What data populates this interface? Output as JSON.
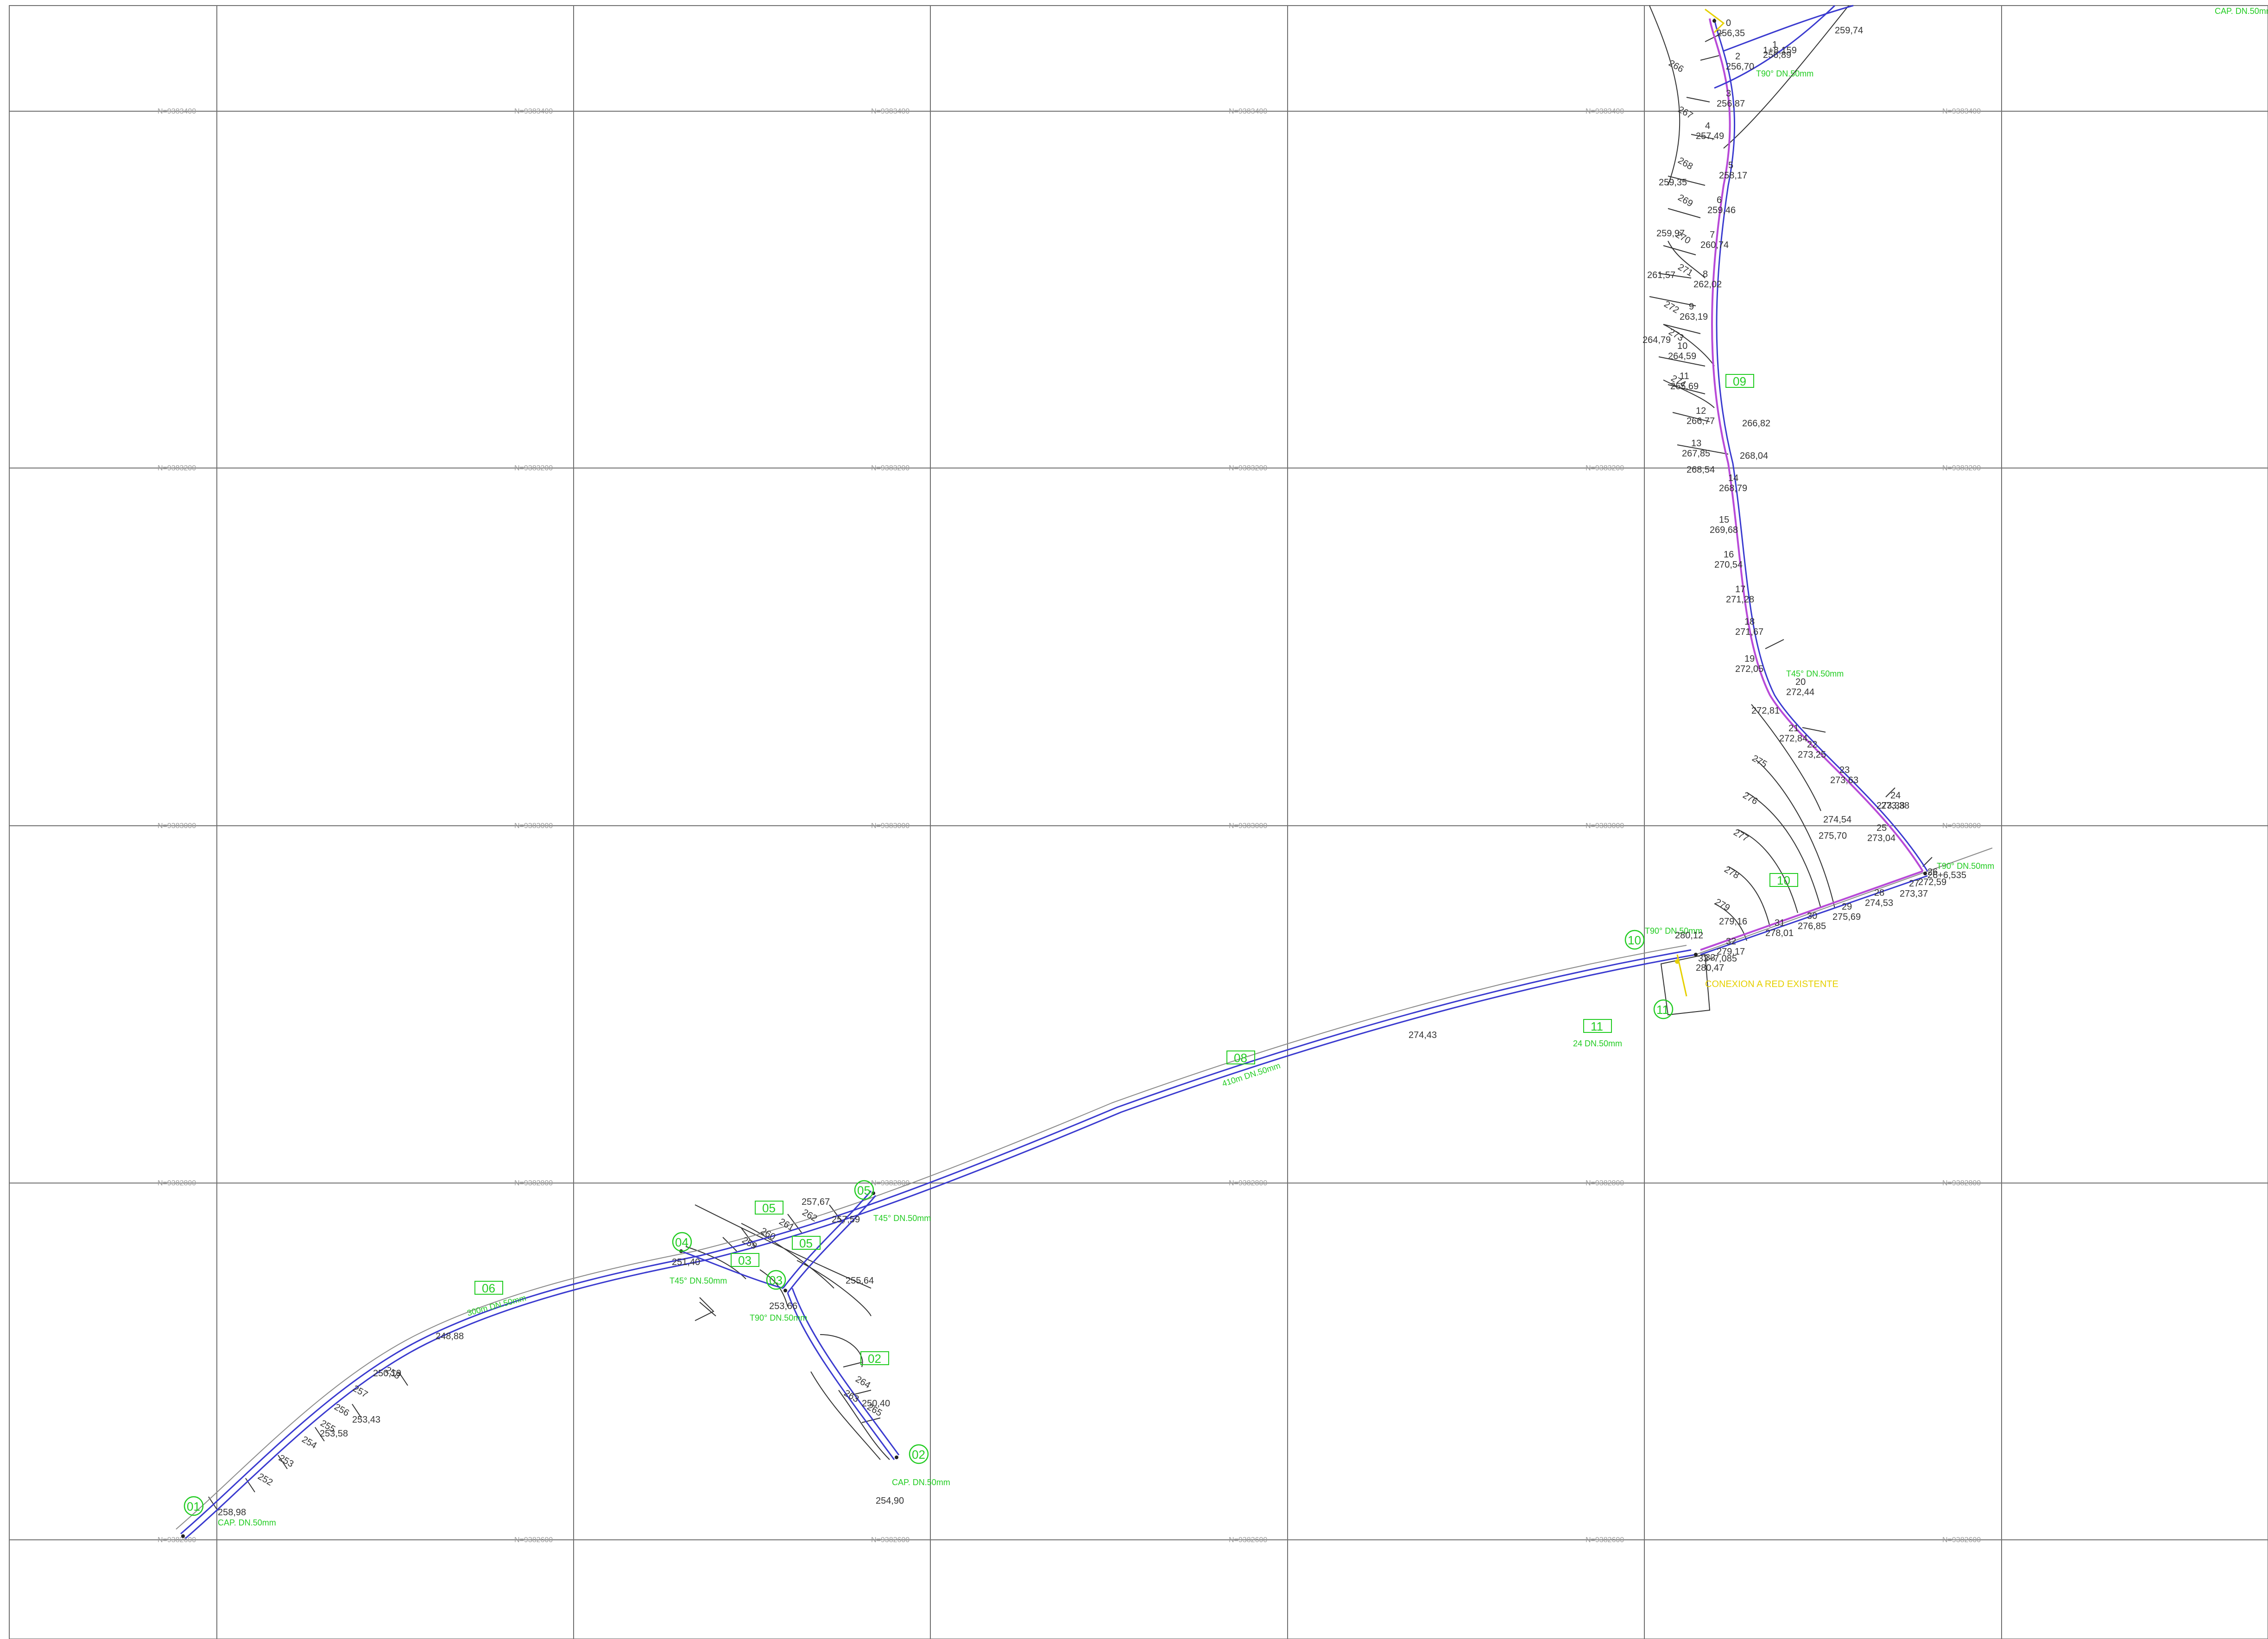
{
  "map": {
    "grid": {
      "rows": [
        {
          "north_label": "N=9383400"
        },
        {
          "north_label": "N=9383200"
        },
        {
          "north_label": "N=9383000"
        },
        {
          "north_label": "N=9382800"
        },
        {
          "north_label": "N=9382600"
        }
      ],
      "east_labels": [
        "E=17??00",
        "E=17??00",
        "E=17??00",
        "E=17??00",
        "E=17??00",
        "E=17??00"
      ]
    },
    "colors": {
      "grid": "#6f6f6f",
      "pipe_main": "#3a3acf",
      "pipe_highlight": "#b84ad8",
      "annotation": "#22cc22",
      "special_note": "#e6d000",
      "elevation_text": "#333333"
    },
    "section_tags": [
      "01",
      "02",
      "03",
      "04",
      "05",
      "06",
      "08",
      "09",
      "10",
      "11"
    ],
    "box_labels": [
      "06",
      "03",
      "05",
      "05",
      "02",
      "08",
      "09",
      "10",
      "11"
    ],
    "circle_labels": [
      "01",
      "02",
      "03",
      "04",
      "05",
      "10",
      "11"
    ],
    "pipe_notes": [
      "CAP. DN.50mm",
      "CAP. DN.50mm",
      "T90° DN.50mm",
      "T45° DN.50mm",
      "T45° DN.50mm",
      "T90° DN.50mm",
      "T90° DN.50mm",
      "T45° DN.50mm",
      "T90° DN.50mm",
      "24 DN.50mm",
      "300m DN.50mm",
      "410m DN.50mm",
      "CAP. DN.50mm"
    ],
    "special_note": "CONEXION A RED EXISTENTE",
    "station_labels": [
      "1+8,159",
      "33+7,085",
      "26+6,535"
    ],
    "station_points": [
      {
        "id": "0",
        "elev": "256,35"
      },
      {
        "id": "1",
        "elev": "256,89"
      },
      {
        "id": "2",
        "elev": "256,70"
      },
      {
        "id": "3",
        "elev": "256,87"
      },
      {
        "id": "4",
        "elev": "257,49"
      },
      {
        "id": "5",
        "elev": "258,17"
      },
      {
        "id": "6",
        "elev": "259,46"
      },
      {
        "id": "7",
        "elev": "260,74"
      },
      {
        "id": "8",
        "elev": "262,02"
      },
      {
        "id": "9",
        "elev": "263,19"
      },
      {
        "id": "10",
        "elev": "264,59"
      },
      {
        "id": "11",
        "elev": "265,69"
      },
      {
        "id": "12",
        "elev": "266,77"
      },
      {
        "id": "13",
        "elev": "267,85"
      },
      {
        "id": "14",
        "elev": "268,79"
      },
      {
        "id": "15",
        "elev": "269,68"
      },
      {
        "id": "16",
        "elev": "270,54"
      },
      {
        "id": "17",
        "elev": "271,28"
      },
      {
        "id": "18",
        "elev": "271,67"
      },
      {
        "id": "19",
        "elev": "272,05"
      },
      {
        "id": "20",
        "elev": "272,44"
      },
      {
        "id": "21",
        "elev": "272,84"
      },
      {
        "id": "22",
        "elev": "273,25"
      },
      {
        "id": "23",
        "elev": "273,63"
      },
      {
        "id": "24",
        "elev": "273,38"
      },
      {
        "id": "25",
        "elev": "273,04"
      },
      {
        "id": "26",
        "elev": "272,59"
      },
      {
        "id": "27",
        "elev": "273,37"
      },
      {
        "id": "28",
        "elev": "274,53"
      },
      {
        "id": "29",
        "elev": "275,69"
      },
      {
        "id": "30",
        "elev": "276,85"
      },
      {
        "id": "31",
        "elev": "278,01"
      },
      {
        "id": "32",
        "elev": "279,17"
      },
      {
        "id": "33",
        "elev": "280,47"
      }
    ],
    "misc_elevations": [
      "259,74",
      "259,35",
      "259,97",
      "261,57",
      "264,79",
      "266,82",
      "268,04",
      "268,54",
      "272,81",
      "273,38",
      "274,54",
      "275,70",
      "279,16",
      "280,12",
      "274,43",
      "257,67",
      "257,59",
      "251,40",
      "253,66",
      "255,64",
      "250,40",
      "254,90",
      "248,88",
      "250,19",
      "253,43",
      "253,58",
      "258,98"
    ],
    "contour_labels": [
      "252",
      "253",
      "254",
      "255",
      "256",
      "257",
      "258",
      "259",
      "260",
      "261",
      "262",
      "263",
      "264",
      "265",
      "266",
      "267",
      "268",
      "269",
      "270",
      "271",
      "272",
      "273",
      "274",
      "275",
      "276",
      "277",
      "278",
      "279"
    ]
  }
}
